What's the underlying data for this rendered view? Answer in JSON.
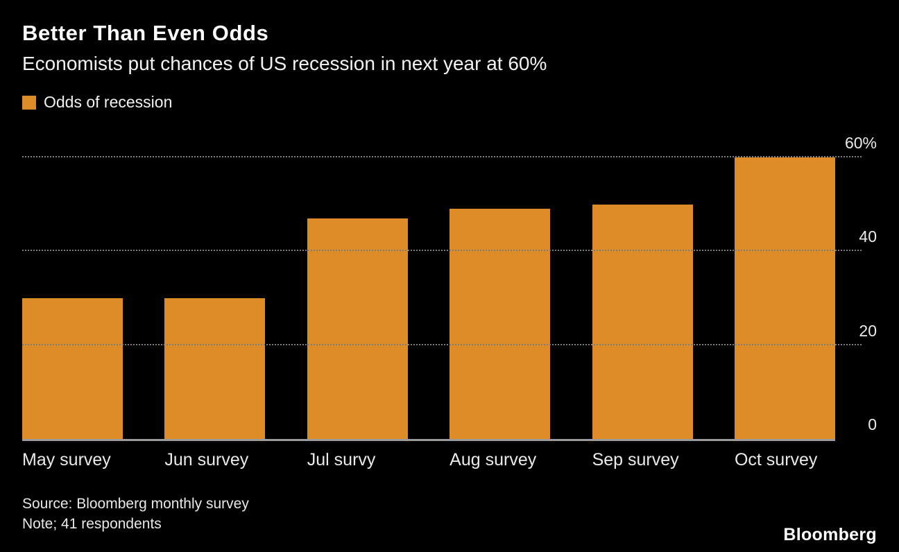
{
  "header": {
    "title": "Better Than Even Odds",
    "subtitle": "Economists put chances of US recession in next year at 60%"
  },
  "legend": {
    "label": "Odds of recession",
    "color": "#de8c28"
  },
  "footer": {
    "source": "Source: Bloomberg monthly survey",
    "note": "Note; 41 respondents",
    "brand": "Bloomberg"
  },
  "chart_data": {
    "type": "bar",
    "title": "Better Than Even Odds",
    "subtitle": "Economists put chances of US recession in next year at 60%",
    "series_name": "Odds of recession",
    "categories": [
      "May survey",
      "Jun survey",
      "Jul survy",
      "Aug survey",
      "Sep survey",
      "Oct survey"
    ],
    "values": [
      30,
      30,
      47,
      49,
      50,
      60
    ],
    "unit": "%",
    "ylim": [
      0,
      65
    ],
    "yticks": [
      {
        "value": 0,
        "label": "0",
        "gridline": false
      },
      {
        "value": 20,
        "label": "20",
        "gridline": true
      },
      {
        "value": 40,
        "label": "40",
        "gridline": true
      },
      {
        "value": 60,
        "label": "60%",
        "gridline": true
      }
    ],
    "bar_color": "#de8c28",
    "background_color": "#000000",
    "grid": "horizontal dotted",
    "legend_position": "top-left",
    "ytick_position": "right"
  }
}
